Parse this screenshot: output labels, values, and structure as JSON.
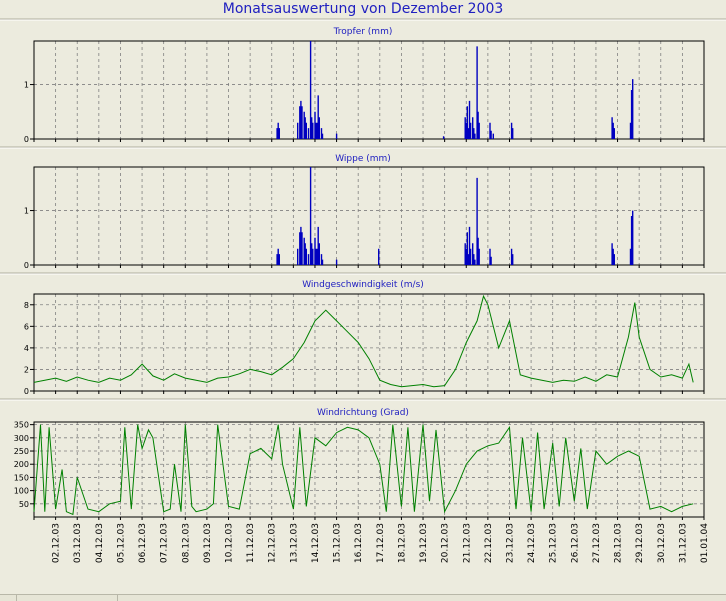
{
  "title": "Monatsauswertung von Dezember 2003",
  "chart_data": [
    {
      "type": "line",
      "title": "Tropfer (mm)",
      "ylim": [
        0,
        1.8
      ],
      "yticks": [
        0,
        1
      ],
      "grid": true,
      "color": "#0000c0",
      "x_labels": [
        "02.12.03",
        "03.12.03",
        "04.12.03",
        "05.12.03",
        "06.12.03",
        "07.12.03",
        "08.12.03",
        "09.12.03",
        "10.12.03",
        "11.12.03",
        "12.12.03",
        "13.12.03",
        "14.12.03",
        "15.12.03",
        "16.12.03",
        "17.12.03",
        "18.12.03",
        "19.12.03",
        "20.12.03",
        "21.12.03",
        "22.12.03",
        "23.12.03",
        "24.12.03",
        "25.12.03",
        "26.12.03",
        "27.12.03",
        "28.12.03",
        "29.12.03",
        "30.12.03",
        "31.12.03",
        "01.01.04"
      ],
      "series": [
        {
          "x": [
            12.25,
            12.3,
            12.35,
            13.2,
            13.3,
            13.35,
            13.4,
            13.5,
            13.55,
            13.6,
            13.7,
            13.8,
            13.85,
            13.9,
            14.0,
            14.05,
            14.1,
            14.15,
            14.2,
            14.3,
            14.35,
            15.0,
            19.95,
            20.95,
            21.0,
            21.05,
            21.1,
            21.15,
            21.2,
            21.3,
            21.35,
            21.4,
            21.5,
            21.55,
            21.6,
            22.1,
            22.15,
            22.25,
            23.1,
            23.15,
            27.75,
            27.8,
            27.85,
            28.6,
            28.65,
            28.7
          ],
          "y": [
            0.2,
            0.3,
            0.2,
            0.3,
            0.6,
            0.7,
            0.6,
            0.5,
            0.4,
            0.3,
            0.2,
            1.8,
            0.4,
            0.3,
            0.5,
            0.3,
            0.3,
            0.8,
            0.4,
            0.2,
            0.1,
            0.1,
            0.05,
            0.4,
            0.3,
            0.6,
            0.2,
            0.7,
            0.3,
            0.4,
            0.2,
            0.1,
            1.7,
            0.5,
            0.3,
            0.3,
            0.15,
            0.1,
            0.3,
            0.2,
            0.4,
            0.3,
            0.2,
            0.3,
            0.9,
            1.1
          ]
        }
      ]
    },
    {
      "type": "line",
      "title": "Wippe (mm)",
      "ylim": [
        0,
        1.8
      ],
      "yticks": [
        0,
        1
      ],
      "grid": true,
      "color": "#0000c0",
      "x_labels": [
        "02.12.03",
        "03.12.03",
        "04.12.03",
        "05.12.03",
        "06.12.03",
        "07.12.03",
        "08.12.03",
        "09.12.03",
        "10.12.03",
        "11.12.03",
        "12.12.03",
        "13.12.03",
        "14.12.03",
        "15.12.03",
        "16.12.03",
        "17.12.03",
        "18.12.03",
        "19.12.03",
        "20.12.03",
        "21.12.03",
        "22.12.03",
        "23.12.03",
        "24.12.03",
        "25.12.03",
        "26.12.03",
        "27.12.03",
        "28.12.03",
        "29.12.03",
        "30.12.03",
        "31.12.03",
        "01.01.04"
      ],
      "series": [
        {
          "x": [
            12.25,
            12.3,
            12.35,
            13.2,
            13.3,
            13.35,
            13.4,
            13.5,
            13.55,
            13.6,
            13.7,
            13.8,
            13.85,
            13.9,
            14.0,
            14.05,
            14.1,
            14.15,
            14.2,
            14.3,
            14.35,
            15.0,
            16.95,
            20.95,
            21.0,
            21.05,
            21.1,
            21.15,
            21.2,
            21.3,
            21.35,
            21.4,
            21.5,
            21.55,
            21.6,
            22.1,
            22.15,
            23.1,
            23.15,
            27.75,
            27.8,
            27.85,
            28.6,
            28.65,
            28.7
          ],
          "y": [
            0.2,
            0.3,
            0.2,
            0.3,
            0.6,
            0.7,
            0.6,
            0.5,
            0.4,
            0.3,
            0.2,
            1.8,
            0.4,
            0.3,
            0.5,
            0.3,
            0.3,
            0.7,
            0.4,
            0.2,
            0.1,
            0.1,
            0.3,
            0.4,
            0.3,
            0.6,
            0.2,
            0.7,
            0.3,
            0.4,
            0.2,
            0.1,
            1.6,
            0.5,
            0.3,
            0.3,
            0.15,
            0.3,
            0.2,
            0.4,
            0.3,
            0.2,
            0.3,
            0.9,
            1.0
          ]
        }
      ]
    },
    {
      "type": "line",
      "title": "Windgeschwindigkeit (m/s)",
      "ylim": [
        0,
        9
      ],
      "yticks": [
        0,
        2,
        4,
        6,
        8
      ],
      "grid": true,
      "color": "#008000",
      "x_labels": [
        "02.12.03",
        "03.12.03",
        "04.12.03",
        "05.12.03",
        "06.12.03",
        "07.12.03",
        "08.12.03",
        "09.12.03",
        "10.12.03",
        "11.12.03",
        "12.12.03",
        "13.12.03",
        "14.12.03",
        "15.12.03",
        "16.12.03",
        "17.12.03",
        "18.12.03",
        "19.12.03",
        "20.12.03",
        "21.12.03",
        "22.12.03",
        "23.12.03",
        "24.12.03",
        "25.12.03",
        "26.12.03",
        "27.12.03",
        "28.12.03",
        "29.12.03",
        "30.12.03",
        "31.12.03",
        "01.01.04"
      ],
      "series": [
        {
          "x": [
            1,
            1.5,
            2,
            2.5,
            3,
            3.5,
            4,
            4.5,
            5,
            5.5,
            6,
            6.5,
            7,
            7.5,
            8,
            8.5,
            9,
            9.5,
            10,
            10.5,
            11,
            11.5,
            12,
            12.5,
            13,
            13.5,
            14,
            14.5,
            15,
            15.5,
            16,
            16.5,
            17,
            17.5,
            18,
            18.5,
            19,
            19.5,
            20,
            20.5,
            21,
            21.5,
            21.8,
            22,
            22.5,
            23,
            23.5,
            24,
            24.5,
            25,
            25.5,
            26,
            26.5,
            27,
            27.5,
            28,
            28.5,
            28.8,
            29,
            29.5,
            30,
            30.5,
            31,
            31.3,
            31.5
          ],
          "y": [
            0.8,
            1.0,
            1.2,
            0.9,
            1.3,
            1.0,
            0.8,
            1.2,
            1.0,
            1.5,
            2.5,
            1.4,
            1.0,
            1.6,
            1.2,
            1.0,
            0.8,
            1.2,
            1.3,
            1.6,
            2.0,
            1.8,
            1.5,
            2.2,
            3.0,
            4.5,
            6.5,
            7.5,
            6.5,
            5.5,
            4.5,
            3.0,
            1.0,
            0.6,
            0.4,
            0.5,
            0.6,
            0.4,
            0.5,
            2.0,
            4.5,
            6.5,
            8.8,
            8.0,
            4.0,
            6.5,
            1.5,
            1.2,
            1.0,
            0.8,
            1.0,
            0.9,
            1.3,
            0.9,
            1.5,
            1.3,
            5.0,
            8.2,
            5.0,
            2.0,
            1.3,
            1.5,
            1.2,
            2.5,
            0.8
          ]
        }
      ]
    },
    {
      "type": "line",
      "title": "Windrichtung (Grad)",
      "ylim": [
        0,
        360
      ],
      "yticks": [
        50,
        100,
        150,
        200,
        250,
        300,
        350
      ],
      "grid": true,
      "color": "#008000",
      "x_labels": [
        "02.12.03",
        "03.12.03",
        "04.12.03",
        "05.12.03",
        "06.12.03",
        "07.12.03",
        "08.12.03",
        "09.12.03",
        "10.12.03",
        "11.12.03",
        "12.12.03",
        "13.12.03",
        "14.12.03",
        "15.12.03",
        "16.12.03",
        "17.12.03",
        "18.12.03",
        "19.12.03",
        "20.12.03",
        "21.12.03",
        "22.12.03",
        "23.12.03",
        "24.12.03",
        "25.12.03",
        "26.12.03",
        "27.12.03",
        "28.12.03",
        "29.12.03",
        "30.12.03",
        "31.12.03",
        "01.01.04"
      ],
      "series": [
        {
          "x": [
            1,
            1.3,
            1.5,
            1.7,
            2,
            2.3,
            2.5,
            2.8,
            3,
            3.5,
            4,
            4.5,
            5,
            5.2,
            5.5,
            5.8,
            6,
            6.3,
            6.5,
            7,
            7.3,
            7.5,
            7.8,
            8,
            8.3,
            8.5,
            9,
            9.3,
            9.5,
            10,
            10.5,
            11,
            11.5,
            12,
            12.3,
            12.5,
            13,
            13.3,
            13.6,
            14,
            14.5,
            15,
            15.5,
            16,
            16.5,
            17,
            17.3,
            17.6,
            18,
            18.3,
            18.6,
            19,
            19.3,
            19.6,
            20,
            20.5,
            21,
            21.5,
            22,
            22.5,
            23,
            23.3,
            23.6,
            24,
            24.3,
            24.6,
            25,
            25.3,
            25.6,
            26,
            26.3,
            26.6,
            27,
            27.5,
            28,
            28.5,
            29,
            29.5,
            30,
            30.5,
            31,
            31.5
          ],
          "y": [
            20,
            350,
            20,
            340,
            30,
            180,
            20,
            10,
            150,
            30,
            20,
            50,
            60,
            340,
            30,
            350,
            260,
            330,
            300,
            20,
            30,
            200,
            20,
            350,
            40,
            20,
            30,
            50,
            350,
            40,
            30,
            240,
            260,
            220,
            350,
            200,
            30,
            340,
            40,
            300,
            270,
            320,
            340,
            330,
            300,
            200,
            20,
            350,
            40,
            340,
            20,
            350,
            60,
            330,
            20,
            100,
            200,
            250,
            270,
            280,
            340,
            30,
            300,
            20,
            320,
            30,
            280,
            40,
            300,
            60,
            260,
            30,
            250,
            200,
            230,
            250,
            230,
            30,
            40,
            20,
            40,
            50
          ]
        }
      ]
    }
  ]
}
